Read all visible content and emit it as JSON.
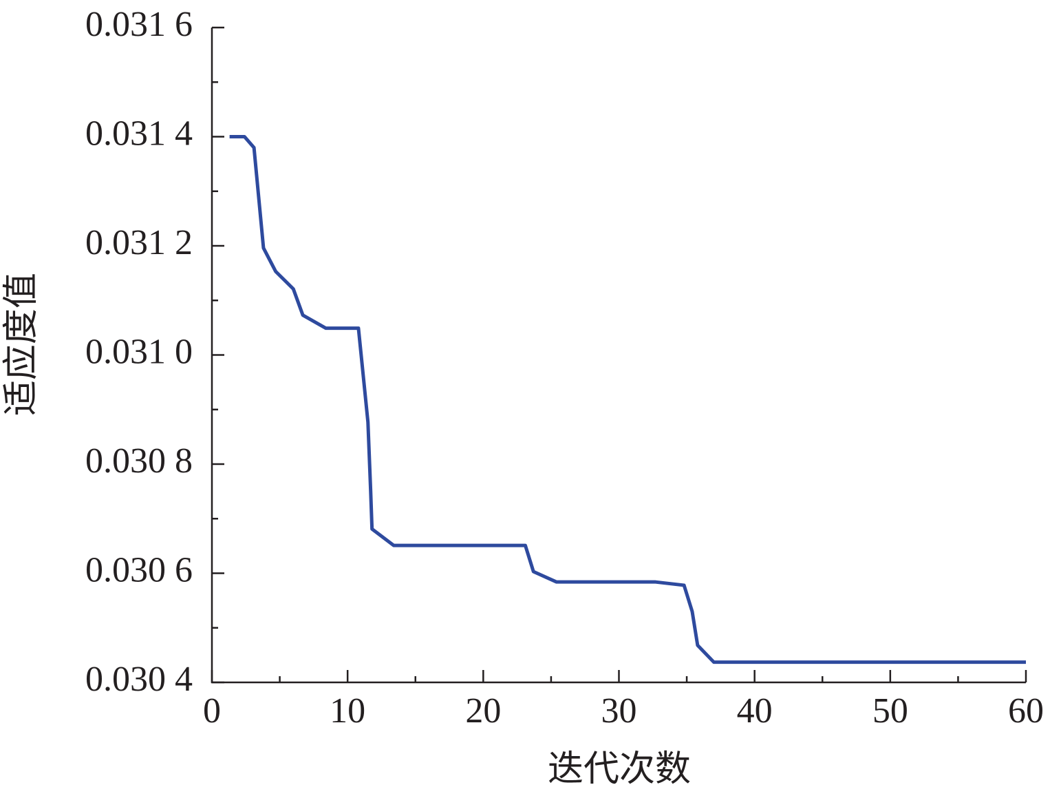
{
  "chart_data": {
    "type": "line",
    "x_label": "迭代次数",
    "y_label": "适应度值",
    "xlim": [
      0,
      60
    ],
    "xticks": [
      0,
      10,
      20,
      30,
      40,
      50,
      60
    ],
    "ylim": [
      0.0304,
      0.0316
    ],
    "yticks": [
      {
        "value": 0.0304,
        "label": "0.030 4"
      },
      {
        "value": 0.0306,
        "label": "0.030 6"
      },
      {
        "value": 0.0308,
        "label": "0.030 8"
      },
      {
        "value": 0.031,
        "label": "0.031 0"
      },
      {
        "value": 0.0312,
        "label": "0.031 2"
      },
      {
        "value": 0.0314,
        "label": "0.031 4"
      },
      {
        "value": 0.0316,
        "label": "0.031 6"
      }
    ],
    "x": [
      1.3,
      2.4,
      3.1,
      3.8,
      4.7,
      6.0,
      6.7,
      8.4,
      10.8,
      11.5,
      11.7,
      11.8,
      13.4,
      23.1,
      23.7,
      25.4,
      32.7,
      34.8,
      35.4,
      35.8,
      37.0,
      60
    ],
    "series": [
      {
        "color": "#2e4a9e",
        "values": [
          0.0314,
          0.0314,
          0.03138,
          0.031196,
          0.031153,
          0.031121,
          0.031073,
          0.031049,
          0.031049,
          0.030877,
          0.030751,
          0.030681,
          0.030651,
          0.030651,
          0.030603,
          0.030584,
          0.030584,
          0.030578,
          0.03053,
          0.030468,
          0.030437,
          0.030437
        ]
      }
    ]
  }
}
